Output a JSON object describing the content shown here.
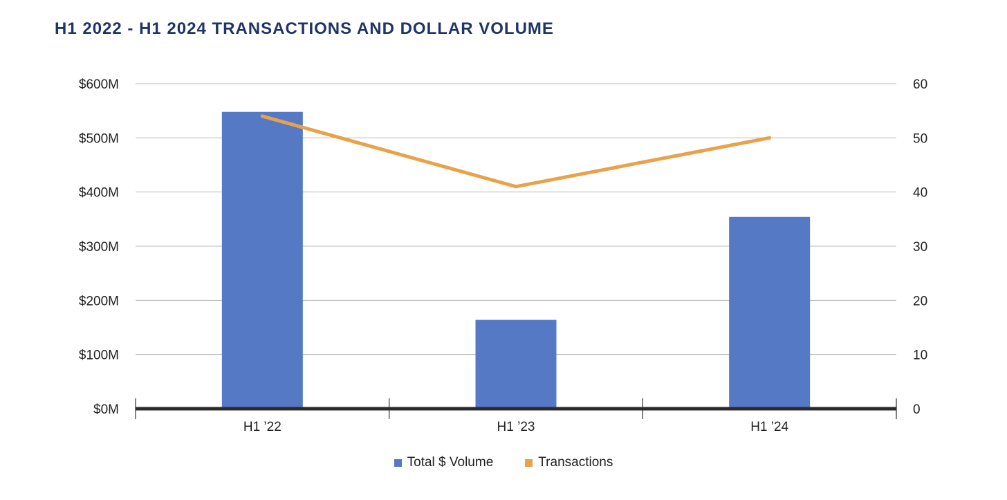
{
  "chart_data": {
    "type": "bar",
    "title": "H1 2022 - H1 2024 TRANSACTIONS AND DOLLAR VOLUME",
    "categories": [
      "H1 ’22",
      "H1 ’23",
      "H1 ’24"
    ],
    "series": [
      {
        "name": "Total $ Volume",
        "type": "bar",
        "axis": "left",
        "color": "#5679c6",
        "values": [
          548,
          164,
          354
        ]
      },
      {
        "name": "Transactions",
        "type": "line",
        "axis": "right",
        "color": "#e9a24b",
        "values": [
          54,
          41,
          50
        ]
      }
    ],
    "y_left": {
      "ticks": [
        "$0M",
        "$100M",
        "$200M",
        "$300M",
        "$400M",
        "$500M",
        "$600M"
      ],
      "ylim": [
        0,
        600
      ],
      "unit": "$M"
    },
    "y_right": {
      "ticks": [
        "0",
        "10",
        "20",
        "30",
        "40",
        "50",
        "60"
      ],
      "ylim": [
        0,
        60
      ]
    },
    "grid": true,
    "legend_position": "bottom"
  }
}
